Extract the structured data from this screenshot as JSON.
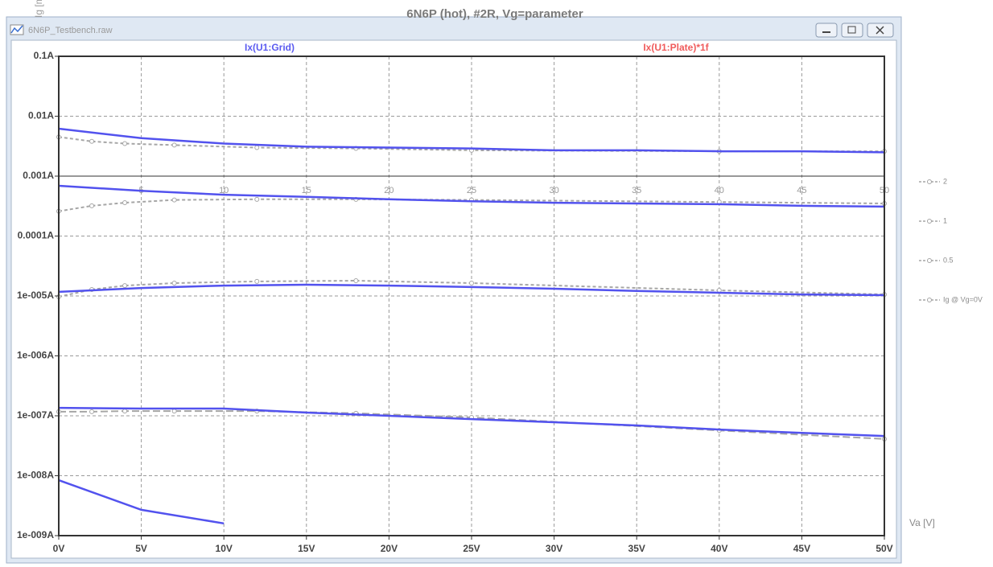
{
  "window": {
    "title": "6N6P_Testbench.raw"
  },
  "chart_data": {
    "type": "line",
    "title": "6N6P (hot), #2R, Vg=parameter",
    "trace_labels": [
      {
        "text": "Ix(U1:Grid)",
        "color": "#5b5bf0"
      },
      {
        "text": "Ix(U1:Plate)*1f",
        "color": "#f05b5b"
      }
    ],
    "x_label": "Va [V]",
    "y_label": "Ig [mA",
    "x": [
      0,
      5,
      10,
      15,
      20,
      25,
      30,
      35,
      40,
      45,
      50
    ],
    "xlim": [
      0,
      50
    ],
    "ylim": [
      1e-09,
      0.1
    ],
    "log_y": true,
    "grid": true,
    "xticks": [
      {
        "value": 0,
        "label": "0V"
      },
      {
        "value": 5,
        "label": "5V"
      },
      {
        "value": 10,
        "label": "10V"
      },
      {
        "value": 15,
        "label": "15V"
      },
      {
        "value": 20,
        "label": "20V"
      },
      {
        "value": 25,
        "label": "25V"
      },
      {
        "value": 30,
        "label": "30V"
      },
      {
        "value": 35,
        "label": "35V"
      },
      {
        "value": 40,
        "label": "40V"
      },
      {
        "value": 45,
        "label": "45V"
      },
      {
        "value": 50,
        "label": "50V"
      }
    ],
    "yticks": [
      {
        "value": 0.1,
        "label": "0.1A"
      },
      {
        "value": 0.01,
        "label": "0.01A"
      },
      {
        "value": 0.001,
        "label": "0.001A"
      },
      {
        "value": 0.0001,
        "label": "0.0001A"
      },
      {
        "value": 1e-05,
        "label": "1e-005A"
      },
      {
        "value": 1e-06,
        "label": "1e-006A"
      },
      {
        "value": 1e-07,
        "label": "1e-007A"
      },
      {
        "value": 1e-08,
        "label": "1e-008A"
      },
      {
        "value": 1e-09,
        "label": "1e-009A"
      }
    ],
    "overlay_xticks": [
      5,
      10,
      15,
      20,
      25,
      30,
      35,
      40,
      45,
      50
    ],
    "series": [
      {
        "color": "#5252ee",
        "values": [
          0.0062,
          0.0043,
          0.0035,
          0.0031,
          0.003,
          0.0029,
          0.0027,
          0.0027,
          0.0026,
          0.0026,
          0.0025
        ]
      },
      {
        "color": "#5252ee",
        "values": [
          0.00069,
          0.00057,
          0.00049,
          0.00045,
          0.00041,
          0.00038,
          0.00036,
          0.00035,
          0.00034,
          0.00032,
          0.00031
        ]
      },
      {
        "color": "#5252ee",
        "values": [
          1.17e-05,
          1.36e-05,
          1.49e-05,
          1.54e-05,
          1.49e-05,
          1.41e-05,
          1.32e-05,
          1.21e-05,
          1.13e-05,
          1.06e-05,
          1.03e-05
        ]
      },
      {
        "color": "#5252ee",
        "values": [
          1.36e-07,
          1.32e-07,
          1.32e-07,
          1.13e-07,
          1e-07,
          8.8e-08,
          7.8e-08,
          6.9e-08,
          5.9e-08,
          5.2e-08,
          4.6e-08
        ]
      },
      {
        "color": "#5252ee",
        "values": [
          8.4e-09,
          2.7e-09,
          1.6e-09,
          null,
          null,
          null,
          null,
          null,
          null,
          null,
          null
        ]
      },
      {
        "name": "2",
        "color": "#a6a6a6",
        "dash": "4,3",
        "x": [
          0,
          2,
          4,
          7,
          12,
          18,
          25,
          40,
          50
        ],
        "values": [
          0.0045,
          0.0038,
          0.0035,
          0.0033,
          0.003,
          0.0029,
          0.0027,
          0.0026,
          0.0026
        ]
      },
      {
        "name": "1",
        "color": "#a6a6a6",
        "dash": "4,3",
        "x": [
          0,
          2,
          4,
          7,
          12,
          18,
          25,
          40,
          50
        ],
        "values": [
          0.00026,
          0.00032,
          0.00036,
          0.0004,
          0.00041,
          0.00041,
          0.0004,
          0.00037,
          0.00035
        ]
      },
      {
        "name": "0.5",
        "color": "#a6a6a6",
        "dash": "4,3",
        "x": [
          0,
          2,
          4,
          7,
          12,
          18,
          25,
          40,
          50
        ],
        "values": [
          9.7e-06,
          1.28e-05,
          1.49e-05,
          1.64e-05,
          1.75e-05,
          1.8e-05,
          1.64e-05,
          1.24e-05,
          1.06e-05
        ]
      },
      {
        "name": "Ig @ Vg=0V",
        "color": "#a6a6a6",
        "dash": "9,4",
        "x": [
          0,
          2,
          4,
          7,
          12,
          18,
          25,
          40,
          50
        ],
        "values": [
          1.17e-07,
          1.17e-07,
          1.2e-07,
          1.2e-07,
          1.2e-07,
          1.1e-07,
          9.4e-08,
          5.7e-08,
          4.1e-08
        ]
      }
    ]
  }
}
